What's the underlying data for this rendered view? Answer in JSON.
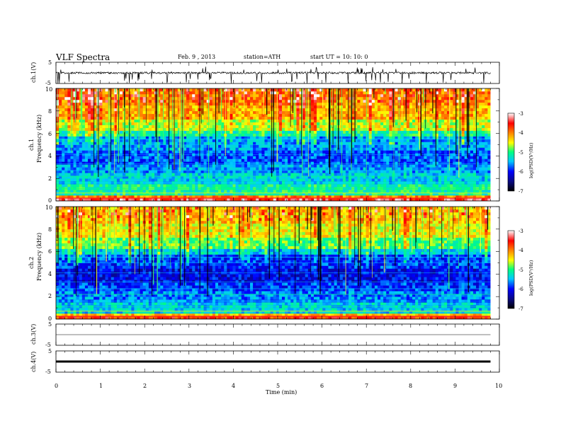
{
  "header": {
    "title": "VLF  Spectra",
    "date": "Feb. 9  , 2013",
    "station": "station=ATH",
    "start": "start  UT  =   10: 10: 0"
  },
  "colors": {
    "waveform": "#000000",
    "background_band": "#1010a0",
    "colormap": [
      "#000000",
      "#0a0a80",
      "#0000ff",
      "#00c8ff",
      "#00ff80",
      "#ffff00",
      "#ff8000",
      "#ff0000",
      "#ffffff"
    ]
  },
  "chart_data": [
    {
      "type": "line",
      "id": "ch1",
      "ylabel": "ch.1(V)",
      "ylim": [
        -5,
        5
      ],
      "y_ticks": [
        "5",
        "-5"
      ],
      "x_range": [
        0,
        10
      ],
      "trace_level_approx": 0,
      "description_of_trace": "noisy waveform around 0 V with frequent negative spikes to about -5 V"
    },
    {
      "type": "heatmap",
      "id": "ch1-spectrogram",
      "ylabel": "ch.1\nFrequency  (kHz)",
      "ylabel_lines": [
        "ch.1",
        "Frequency  (kHz)"
      ],
      "ylim": [
        0,
        10
      ],
      "y_ticks": [
        "10",
        "8",
        "6",
        "4",
        "2",
        "0"
      ],
      "x_range": [
        0,
        9.8
      ],
      "colorbar": {
        "label": "log(PSD(V²/Hz)",
        "range": [
          -7,
          -3
        ],
        "ticks": [
          "-3",
          "-4",
          "-5",
          "-6",
          "-7"
        ]
      }
    },
    {
      "type": "heatmap",
      "id": "ch2-spectrogram",
      "ylabel": "ch.2\nFrequency  (kHz)",
      "ylabel_lines": [
        "ch.2",
        "Frequency  (kHz)"
      ],
      "ylim": [
        0,
        10
      ],
      "y_ticks": [
        "10",
        "8",
        "6",
        "4",
        "2",
        "0"
      ],
      "x_range": [
        0,
        9.8
      ],
      "colorbar": {
        "label": "log(PSD(V²/Hz)",
        "range": [
          -7,
          -3
        ],
        "ticks": [
          "-3",
          "-4",
          "-5",
          "-6",
          "-7"
        ]
      }
    },
    {
      "type": "line",
      "id": "ch3",
      "ylabel": "ch.3(V)",
      "ylim": [
        -5,
        5
      ],
      "y_ticks": [
        "5",
        "-5"
      ],
      "x_range": [
        0,
        10
      ],
      "trace_level_approx": 0
    },
    {
      "type": "line",
      "id": "ch4",
      "ylabel": "ch.4(V)",
      "ylim": [
        -5,
        5
      ],
      "y_ticks": [
        "5",
        "-5"
      ],
      "x_range": [
        0,
        10
      ],
      "trace_level_approx": 0
    }
  ],
  "x_axis": {
    "label": "Time  (min)",
    "ticks": [
      "0",
      "1",
      "2",
      "3",
      "4",
      "5",
      "6",
      "7",
      "8",
      "9",
      "10"
    ],
    "range": [
      0,
      10
    ]
  }
}
